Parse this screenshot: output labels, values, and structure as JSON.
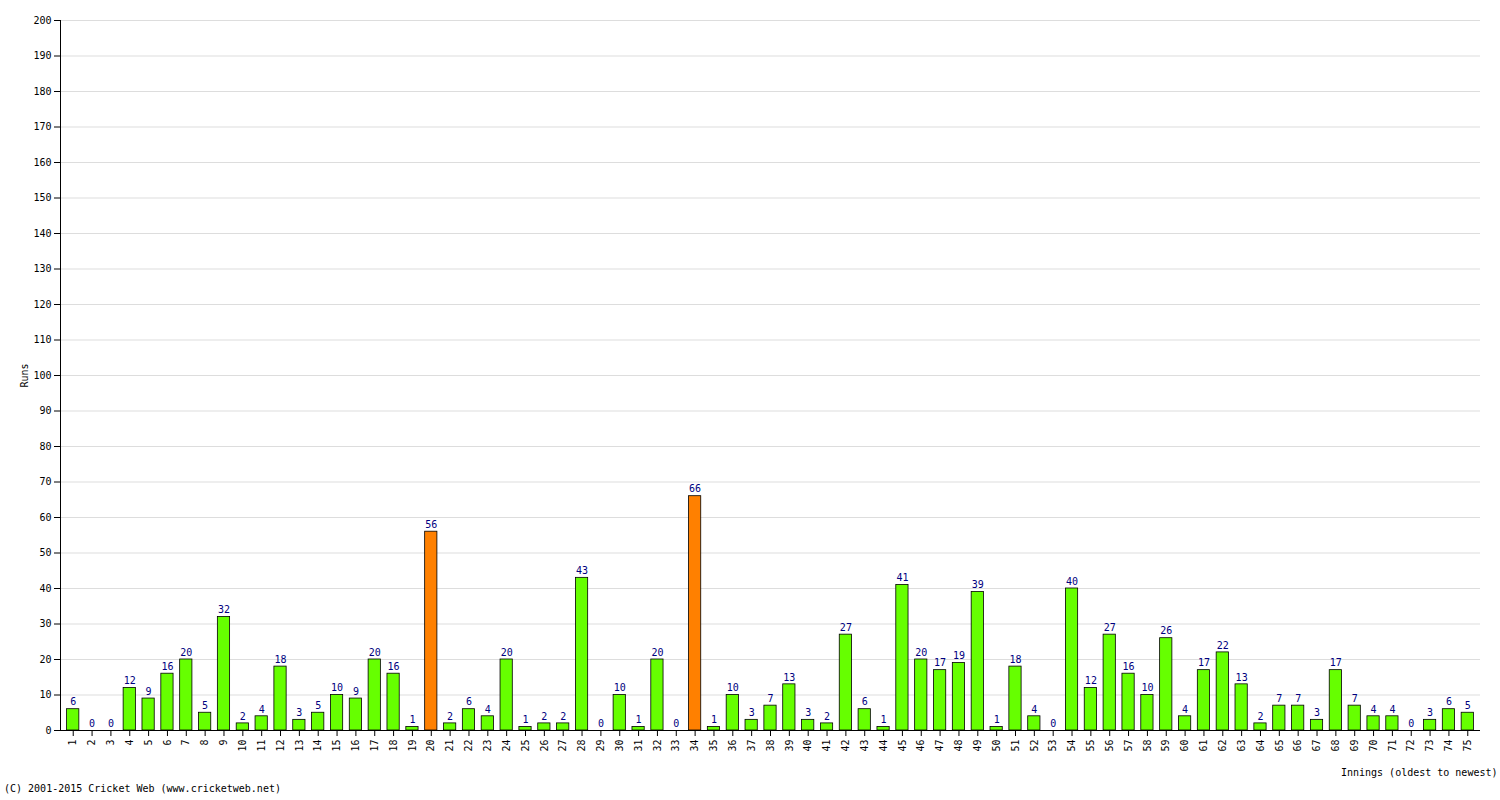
{
  "chart_data": {
    "type": "bar",
    "x_label": "Innings (oldest to newest)",
    "y_label": "Runs",
    "annotations": [
      "(C) 2001-2015 Cricket Web (www.cricketweb.net)"
    ],
    "categories": [
      "1",
      "2",
      "3",
      "4",
      "5",
      "6",
      "7",
      "8",
      "9",
      "10",
      "11",
      "12",
      "13",
      "14",
      "15",
      "16",
      "17",
      "18",
      "19",
      "20",
      "21",
      "22",
      "23",
      "24",
      "25",
      "26",
      "27",
      "28",
      "29",
      "30",
      "31",
      "32",
      "33",
      "34",
      "35",
      "36",
      "37",
      "38",
      "39",
      "40",
      "41",
      "42",
      "43",
      "44",
      "45",
      "46",
      "47",
      "48",
      "49",
      "50",
      "51",
      "52",
      "53",
      "54",
      "55",
      "56",
      "57",
      "58",
      "59",
      "60",
      "61",
      "62",
      "63",
      "64",
      "65",
      "66",
      "67",
      "68",
      "69",
      "70",
      "71",
      "72",
      "73",
      "74",
      "75"
    ],
    "values": [
      6,
      0,
      0,
      12,
      9,
      16,
      20,
      5,
      32,
      2,
      4,
      18,
      3,
      5,
      10,
      9,
      20,
      16,
      1,
      56,
      2,
      6,
      4,
      20,
      1,
      2,
      2,
      43,
      0,
      10,
      1,
      20,
      0,
      66,
      1,
      10,
      3,
      7,
      13,
      3,
      2,
      27,
      6,
      1,
      41,
      20,
      17,
      19,
      39,
      1,
      18,
      4,
      0,
      40,
      12,
      27,
      16,
      10,
      26,
      4,
      17,
      22,
      13,
      2,
      7,
      7,
      3,
      17,
      7,
      4,
      4,
      0,
      3,
      6,
      5
    ],
    "colors": [
      "#66ff00",
      "#66ff00",
      "#66ff00",
      "#66ff00",
      "#66ff00",
      "#66ff00",
      "#66ff00",
      "#66ff00",
      "#66ff00",
      "#66ff00",
      "#66ff00",
      "#66ff00",
      "#66ff00",
      "#66ff00",
      "#66ff00",
      "#66ff00",
      "#66ff00",
      "#66ff00",
      "#66ff00",
      "#ff8000",
      "#66ff00",
      "#66ff00",
      "#66ff00",
      "#66ff00",
      "#66ff00",
      "#66ff00",
      "#66ff00",
      "#66ff00",
      "#66ff00",
      "#66ff00",
      "#66ff00",
      "#66ff00",
      "#66ff00",
      "#ff8000",
      "#66ff00",
      "#66ff00",
      "#66ff00",
      "#66ff00",
      "#66ff00",
      "#66ff00",
      "#66ff00",
      "#66ff00",
      "#66ff00",
      "#66ff00",
      "#66ff00",
      "#66ff00",
      "#66ff00",
      "#66ff00",
      "#66ff00",
      "#66ff00",
      "#66ff00",
      "#66ff00",
      "#66ff00",
      "#66ff00",
      "#66ff00",
      "#66ff00",
      "#66ff00",
      "#66ff00",
      "#66ff00",
      "#66ff00",
      "#66ff00",
      "#66ff00",
      "#66ff00",
      "#66ff00",
      "#66ff00",
      "#66ff00",
      "#66ff00",
      "#66ff00",
      "#66ff00",
      "#66ff00",
      "#66ff00",
      "#66ff00",
      "#66ff00",
      "#66ff00",
      "#66ff00"
    ],
    "ylim": [
      0,
      200
    ],
    "yticks": [
      0,
      10,
      20,
      30,
      40,
      50,
      60,
      70,
      80,
      90,
      100,
      110,
      120,
      130,
      140,
      150,
      160,
      170,
      180,
      190,
      200
    ],
    "grid": true,
    "data_labels": true
  }
}
